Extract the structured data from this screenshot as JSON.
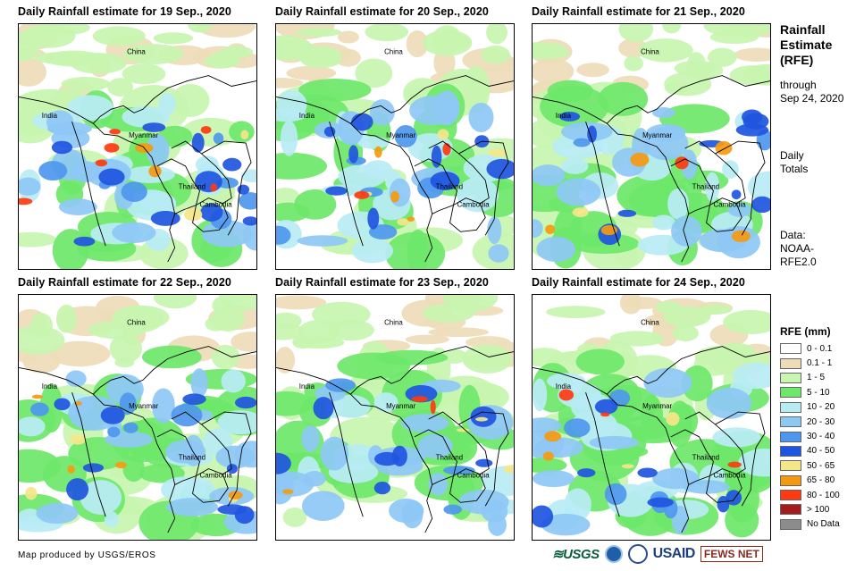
{
  "panels": [
    {
      "title": "Daily Rainfall estimate for 19 Sep., 2020",
      "intensity": 1.0
    },
    {
      "title": "Daily Rainfall estimate for 20 Sep., 2020",
      "intensity": 0.85
    },
    {
      "title": "Daily Rainfall estimate for 21 Sep., 2020",
      "intensity": 0.65
    },
    {
      "title": "Daily Rainfall estimate for 22 Sep., 2020",
      "intensity": 0.75
    },
    {
      "title": "Daily Rainfall estimate for 23 Sep., 2020",
      "intensity": 0.6
    },
    {
      "title": "Daily Rainfall estimate for 24 Sep., 2020",
      "intensity": 0.7
    }
  ],
  "map_labels": {
    "china": "China",
    "india": "India",
    "myanmar": "Myanmar",
    "thailand": "Thailand",
    "cambodia": "Cambodia"
  },
  "sidebar": {
    "title_lines": [
      "Rainfall",
      "Estimate",
      "(RFE)"
    ],
    "through_lines": [
      "through",
      "Sep 24, 2020"
    ],
    "totals_lines": [
      "Daily",
      "Totals"
    ],
    "data_lines": [
      "Data:",
      "NOAA-",
      "RFE2.0"
    ]
  },
  "legend": {
    "title": "RFE (mm)",
    "items": [
      {
        "label": "0 - 0.1",
        "color": "#ffffff"
      },
      {
        "label": "0.1 - 1",
        "color": "#eedcb8"
      },
      {
        "label": "1 - 5",
        "color": "#c8f5b0"
      },
      {
        "label": "5 - 10",
        "color": "#6ee76a"
      },
      {
        "label": "10 - 20",
        "color": "#b8ecf5"
      },
      {
        "label": "20 - 30",
        "color": "#8ec8f5"
      },
      {
        "label": "30 - 40",
        "color": "#4f97ee"
      },
      {
        "label": "40 - 50",
        "color": "#1f55e0"
      },
      {
        "label": "50 - 65",
        "color": "#f5e68a"
      },
      {
        "label": "65 - 80",
        "color": "#f59a10"
      },
      {
        "label": "80 - 100",
        "color": "#ff3a10"
      },
      {
        "label": "> 100",
        "color": "#a41c1c"
      },
      {
        "label": "No Data",
        "color": "#8c8c8c"
      }
    ]
  },
  "footer": {
    "credit": "Map produced by USGS/EROS",
    "logos": {
      "usgs": "≋USGS",
      "usaid": "USAID",
      "fews": "FEWS NET"
    }
  }
}
